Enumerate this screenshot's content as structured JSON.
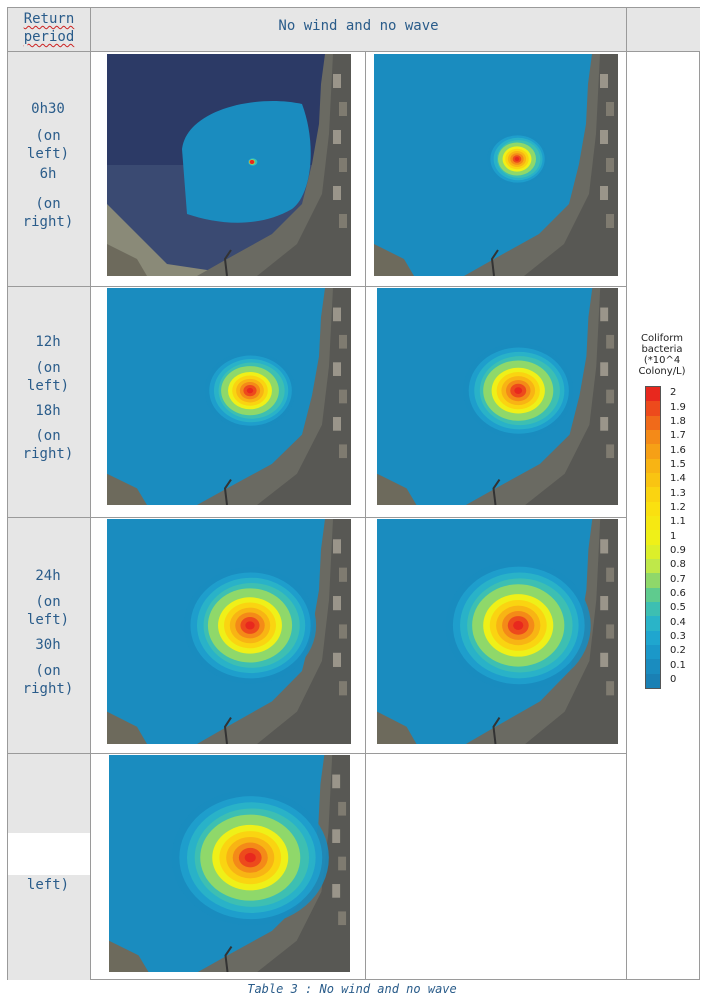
{
  "header": {
    "left": "Return period",
    "center": "No wind and no wave"
  },
  "rows": [
    {
      "lines": [
        "0h30",
        "(on",
        "left)",
        "6h",
        "(on",
        "right)"
      ]
    },
    {
      "lines": [
        "12h",
        "(on",
        "left)",
        "18h",
        "(on",
        "right)"
      ]
    },
    {
      "lines": [
        "24h",
        "(on",
        "left)",
        "30h",
        "(on",
        "right)"
      ]
    },
    {
      "lines": [
        "left)"
      ]
    }
  ],
  "maps": [
    {
      "id": "0h30",
      "satellite": true,
      "plume": 0.05
    },
    {
      "id": "6h",
      "satellite": false,
      "plume": 0.2
    },
    {
      "id": "12h",
      "satellite": false,
      "plume": 0.35
    },
    {
      "id": "18h",
      "satellite": false,
      "plume": 0.45
    },
    {
      "id": "24h",
      "satellite": false,
      "plume": 0.55
    },
    {
      "id": "30h",
      "satellite": false,
      "plume": 0.62
    },
    {
      "id": "36h",
      "satellite": false,
      "plume": 0.68
    }
  ],
  "colorbar": {
    "title_lines": [
      "Coliform",
      "bacteria",
      "(*10^4",
      "Colony/L)"
    ],
    "ticks": [
      "2",
      "1.9",
      "1.8",
      "1.7",
      "1.6",
      "1.5",
      "1.4",
      "1.3",
      "1.2",
      "1.1",
      "1",
      "0.9",
      "0.8",
      "0.7",
      "0.6",
      "0.5",
      "0.4",
      "0.3",
      "0.2",
      "0.1",
      "0"
    ],
    "colors": [
      "#e8281e",
      "#ed4a1c",
      "#f06a1a",
      "#f48a18",
      "#f6a016",
      "#f8b414",
      "#f9c412",
      "#fad411",
      "#fae010",
      "#f6e812",
      "#eff018",
      "#dcef2a",
      "#bfe84a",
      "#8fd86a",
      "#5fcb8e",
      "#3dbfb2",
      "#2ab4c8",
      "#1fa6cf",
      "#1b98c9",
      "#1a8cbf",
      "#1a80b4"
    ]
  },
  "caption": "Table 3 : No wind and no wave"
}
